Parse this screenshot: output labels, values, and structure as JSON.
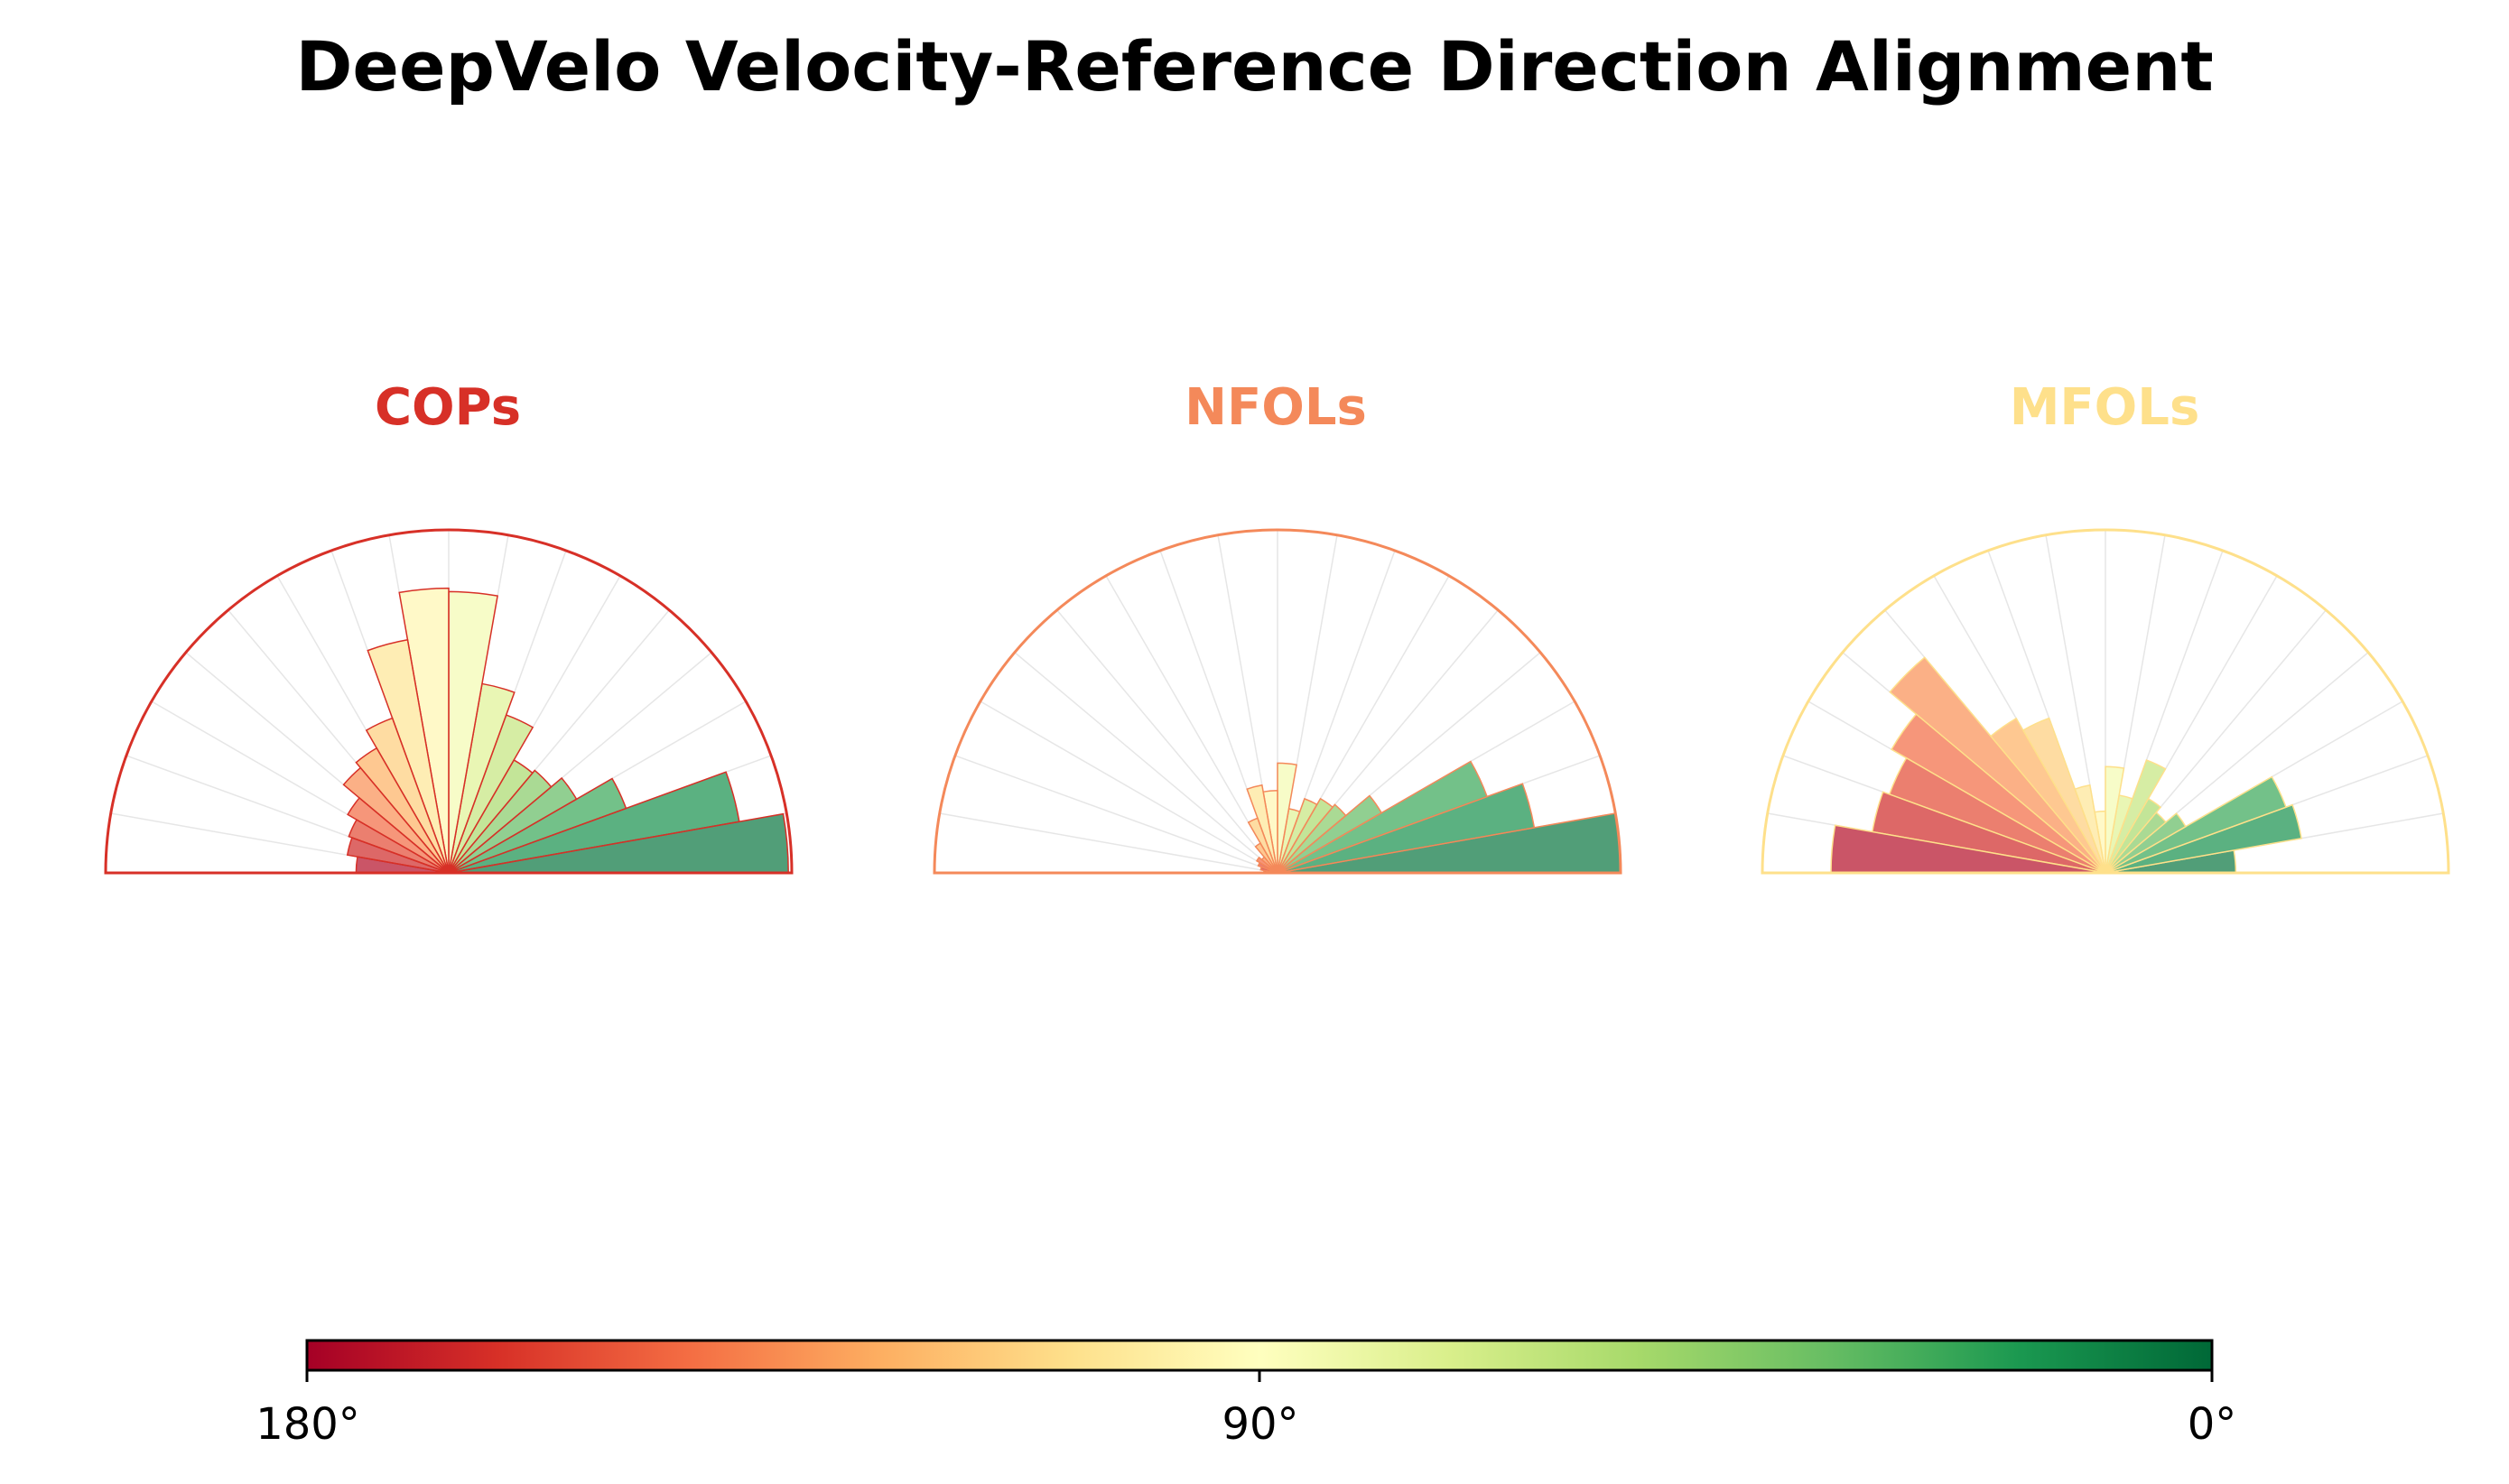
{
  "title": "DeepVelo Velocity-Reference Direction Alignment",
  "chart_data": [
    {
      "type": "polar-bar",
      "title": "COPs",
      "title_color": "#d73027",
      "angle_range_deg": [
        0,
        180
      ],
      "bin_width_deg": 10,
      "bin_centers_deg": [
        5,
        15,
        25,
        35,
        45,
        55,
        65,
        75,
        85,
        95,
        105,
        115,
        125,
        135,
        145,
        155,
        165,
        175
      ],
      "values": [
        0.99,
        0.86,
        0.55,
        0.43,
        0.39,
        0.38,
        0.49,
        0.56,
        0.82,
        0.83,
        0.69,
        0.48,
        0.42,
        0.4,
        0.34,
        0.31,
        0.3,
        0.27
      ],
      "rmax": 1.0
    },
    {
      "type": "polar-bar",
      "title": "NFOLs",
      "title_color": "#f4895a",
      "angle_range_deg": [
        0,
        180
      ],
      "bin_width_deg": 10,
      "bin_centers_deg": [
        5,
        15,
        25,
        35,
        45,
        55,
        65,
        75,
        85,
        95,
        105,
        115,
        125,
        135,
        145,
        155,
        165,
        175
      ],
      "values": [
        1.0,
        0.76,
        0.65,
        0.35,
        0.26,
        0.25,
        0.23,
        0.19,
        0.32,
        0.24,
        0.26,
        0.17,
        0.1,
        0.06,
        0.07,
        0.06,
        0.05,
        0.04
      ],
      "rmax": 1.0
    },
    {
      "type": "polar-bar",
      "title": "MFOLs",
      "title_color": "#fee08b",
      "angle_range_deg": [
        0,
        180
      ],
      "bin_width_deg": 10,
      "bin_centers_deg": [
        5,
        15,
        25,
        35,
        45,
        55,
        65,
        75,
        85,
        95,
        105,
        115,
        125,
        135,
        145,
        155,
        165,
        175
      ],
      "values": [
        0.38,
        0.58,
        0.56,
        0.27,
        0.23,
        0.25,
        0.35,
        0.23,
        0.31,
        0.18,
        0.26,
        0.48,
        0.52,
        0.82,
        0.72,
        0.67,
        0.69,
        0.8
      ],
      "rmax": 1.0
    }
  ],
  "colorbar": {
    "labels": [
      "180°",
      "90°",
      "0°"
    ],
    "ticks_deg": [
      180,
      90,
      0
    ],
    "range_deg": [
      180,
      0
    ],
    "colormap": [
      "#a50026",
      "#d73027",
      "#f46d43",
      "#fdae61",
      "#fee08b",
      "#ffffbf",
      "#d9ef8b",
      "#a6d96a",
      "#66bd63",
      "#1a9850",
      "#006837"
    ]
  }
}
